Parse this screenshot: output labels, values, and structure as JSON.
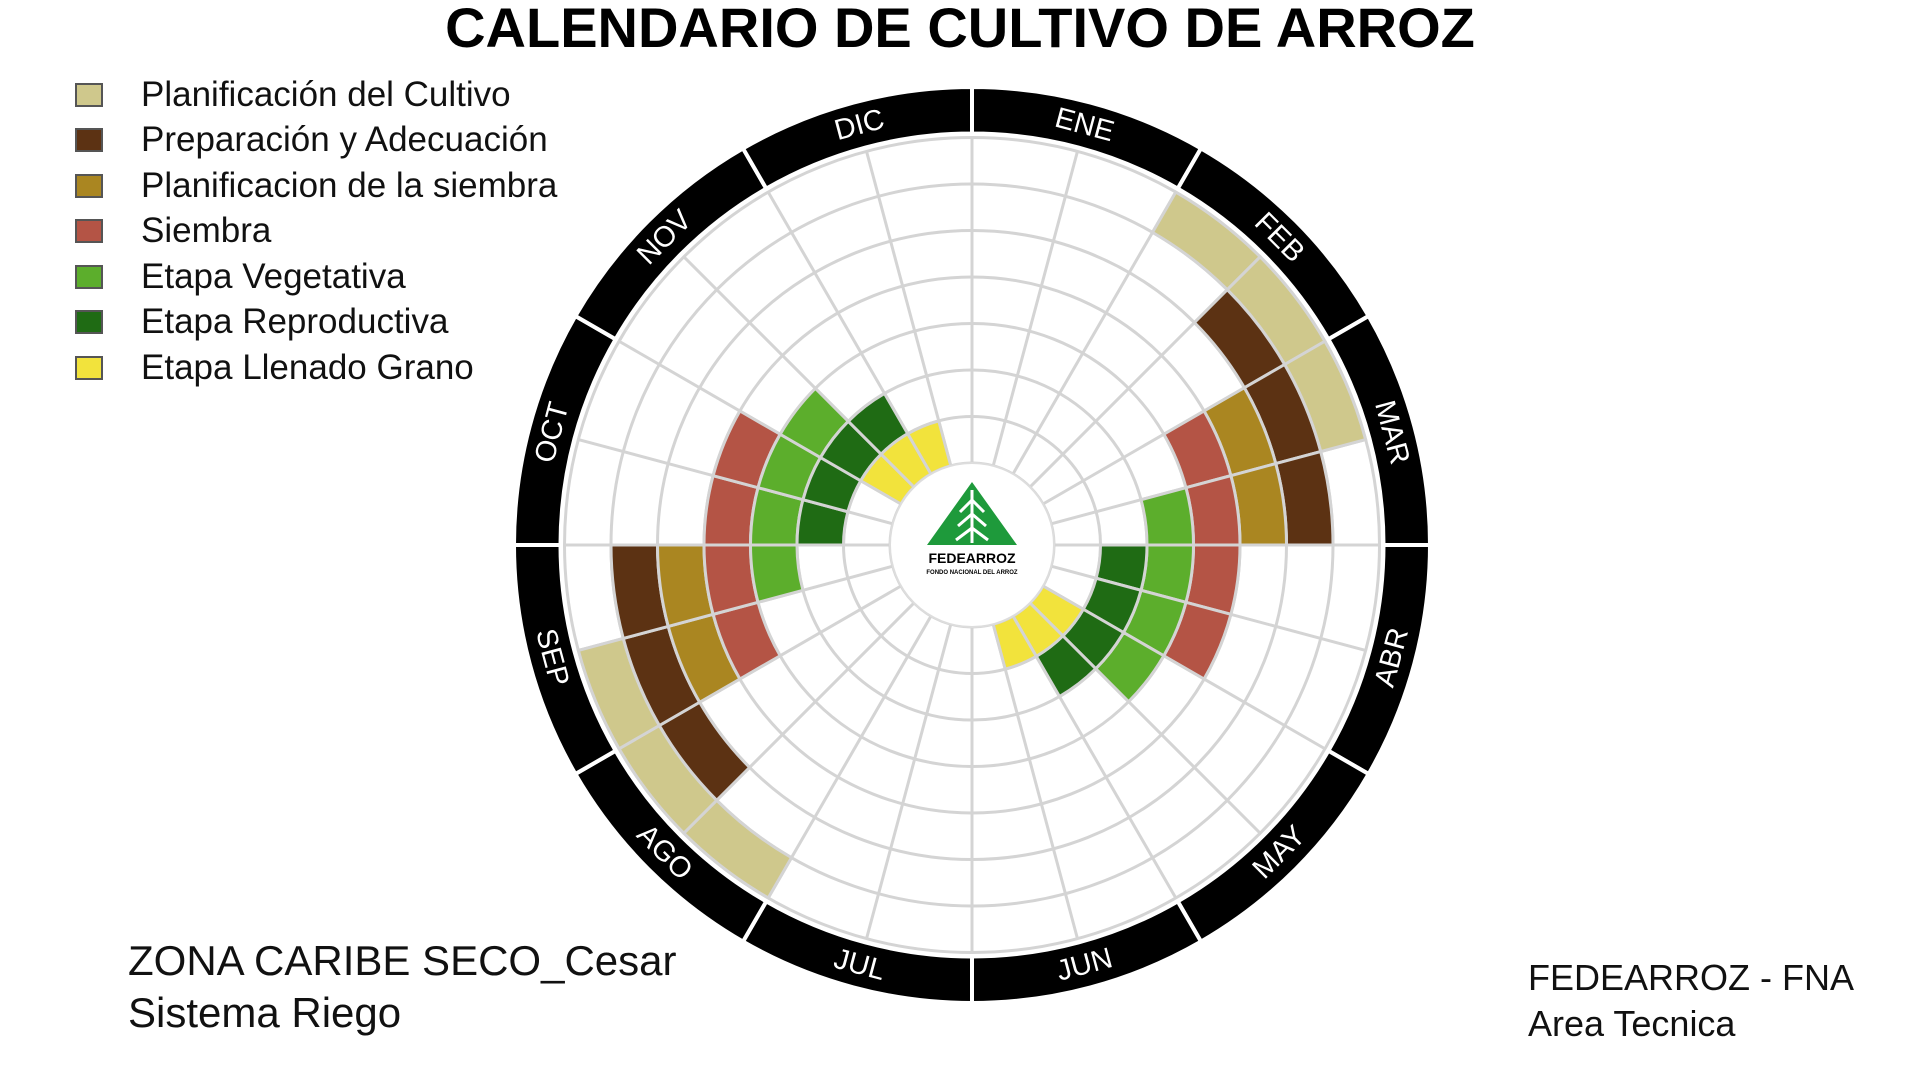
{
  "chart_data": {
    "type": "polar-calendar",
    "title": "CALENDARIO DE CULTIVO DE ARROZ",
    "months": [
      "ENE",
      "FEB",
      "MAR",
      "ABR",
      "MAY",
      "JUN",
      "JUL",
      "AGO",
      "SEP",
      "OCT",
      "NOV",
      "DIC"
    ],
    "legend_position": "top-left",
    "series": [
      {
        "name": "Planificación del Cultivo",
        "color": "#cfc88c",
        "ring": 7,
        "segments": [
          [
            1.0,
            2.5
          ],
          [
            7.0,
            8.5
          ]
        ]
      },
      {
        "name": "Preparación y Adecuación",
        "color": "#5c3213",
        "ring": 6,
        "segments": [
          [
            1.5,
            3.0
          ],
          [
            7.5,
            9.0
          ]
        ]
      },
      {
        "name": "Planificacion de la siembra",
        "color": "#aa8621",
        "ring": 5,
        "segments": [
          [
            2.0,
            3.0
          ],
          [
            8.0,
            9.0
          ]
        ]
      },
      {
        "name": "Siembra",
        "color": "#b45445",
        "ring": 4,
        "segments": [
          [
            2.0,
            4.0
          ],
          [
            8.0,
            10.0
          ]
        ]
      },
      {
        "name": "Etapa Vegetativa",
        "color": "#5cae2c",
        "ring": 3,
        "segments": [
          [
            2.5,
            4.5
          ],
          [
            8.5,
            10.5
          ]
        ]
      },
      {
        "name": "Etapa Reproductiva",
        "color": "#1f6b14",
        "ring": 2,
        "segments": [
          [
            3.0,
            5.0
          ],
          [
            9.0,
            11.0
          ]
        ]
      },
      {
        "name": "Etapa Llenado Grano",
        "color": "#f2e33c",
        "ring": 1,
        "segments": [
          [
            4.0,
            5.5
          ],
          [
            10.0,
            11.5
          ]
        ]
      }
    ]
  },
  "center_logo": {
    "name": "FEDEARROZ",
    "subtitle": "FONDO NACIONAL DEL ARROZ",
    "color": "#1e9a3b"
  },
  "zone": {
    "line1": "ZONA CARIBE SECO_Cesar",
    "line2": "Sistema Riego"
  },
  "credits": {
    "line1": "FEDEARROZ - FNA",
    "line2": "Area Tecnica"
  }
}
